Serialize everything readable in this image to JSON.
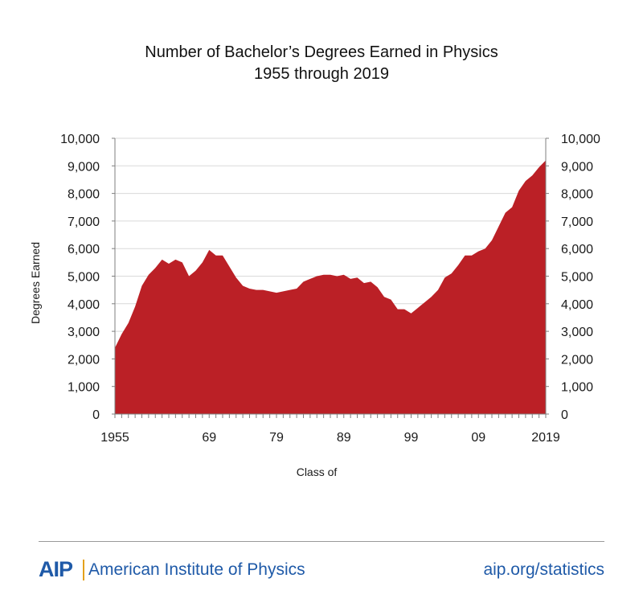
{
  "colors": {
    "fill": "#BB2026",
    "grid": "#d9d9d9",
    "axis": "#7f7f7f",
    "brand_blue": "#1f5aa8",
    "brand_gold": "#e4a11b"
  },
  "footer": {
    "logo_mark": "AIP",
    "logo_name": "American Institute of Physics",
    "link": "aip.org/statistics"
  },
  "chart_data": {
    "type": "area",
    "title": "Number of Bachelor’s Degrees Earned in Physics",
    "subtitle": "1955 through 2019",
    "xlabel": "Class of",
    "ylabel": "Degrees Earned",
    "ylim": [
      0,
      10000
    ],
    "xlim": [
      1955,
      2019
    ],
    "grid": true,
    "dual_y_axis": true,
    "y_ticks": [
      "0",
      "1,000",
      "2,000",
      "3,000",
      "4,000",
      "5,000",
      "6,000",
      "7,000",
      "8,000",
      "9,000",
      "10,000"
    ],
    "x_tick_labels": [
      {
        "year": 1955,
        "label": "1955"
      },
      {
        "year": 1969,
        "label": "69"
      },
      {
        "year": 1979,
        "label": "79"
      },
      {
        "year": 1989,
        "label": "89"
      },
      {
        "year": 1999,
        "label": "99"
      },
      {
        "year": 2009,
        "label": "09"
      },
      {
        "year": 2019,
        "label": "2019"
      }
    ],
    "x": [
      1955,
      1956,
      1957,
      1958,
      1959,
      1960,
      1961,
      1962,
      1963,
      1964,
      1965,
      1966,
      1967,
      1968,
      1969,
      1970,
      1971,
      1972,
      1973,
      1974,
      1975,
      1976,
      1977,
      1978,
      1979,
      1980,
      1981,
      1982,
      1983,
      1984,
      1985,
      1986,
      1987,
      1988,
      1989,
      1990,
      1991,
      1992,
      1993,
      1994,
      1995,
      1996,
      1997,
      1998,
      1999,
      2000,
      2001,
      2002,
      2003,
      2004,
      2005,
      2006,
      2007,
      2008,
      2009,
      2010,
      2011,
      2012,
      2013,
      2014,
      2015,
      2016,
      2017,
      2018,
      2019
    ],
    "values": [
      2400,
      2900,
      3300,
      3900,
      4650,
      5050,
      5300,
      5600,
      5450,
      5600,
      5500,
      5000,
      5200,
      5500,
      5950,
      5750,
      5750,
      5350,
      4950,
      4650,
      4550,
      4500,
      4500,
      4450,
      4400,
      4450,
      4500,
      4550,
      4800,
      4900,
      5000,
      5050,
      5050,
      5000,
      5050,
      4900,
      4950,
      4750,
      4800,
      4600,
      4250,
      4150,
      3800,
      3800,
      3650,
      3850,
      4050,
      4250,
      4500,
      4950,
      5100,
      5400,
      5750,
      5750,
      5900,
      6000,
      6300,
      6800,
      7300,
      7500,
      8100,
      8450,
      8650,
      8950,
      9200
    ]
  }
}
